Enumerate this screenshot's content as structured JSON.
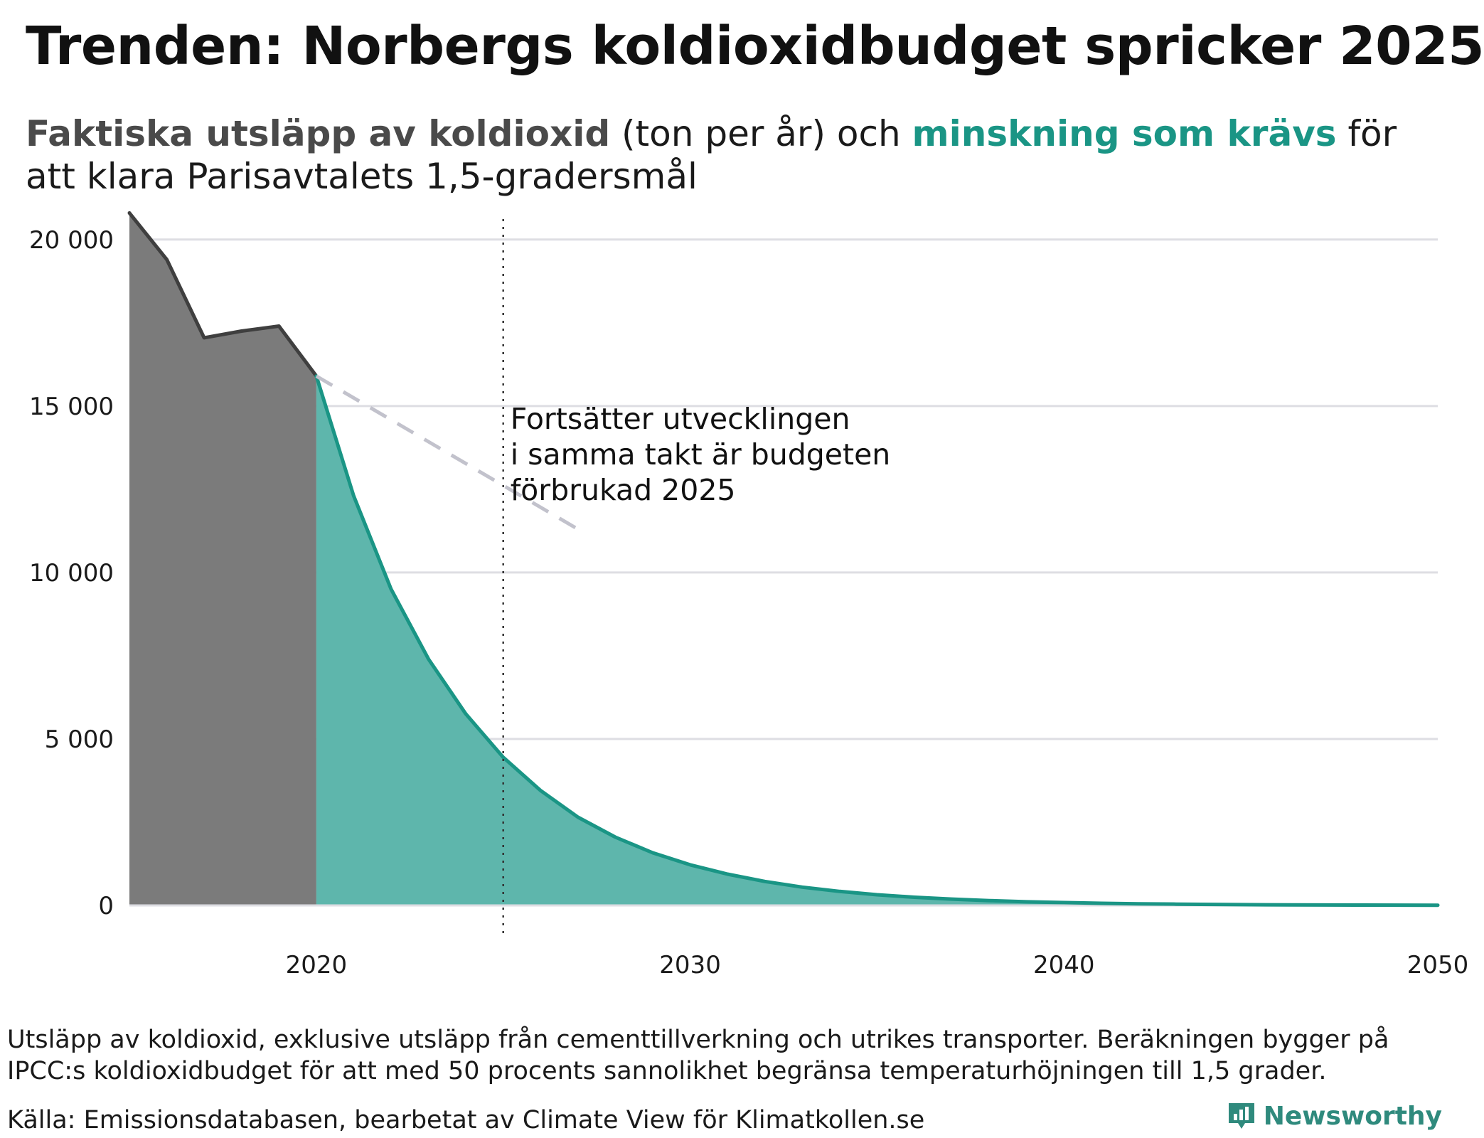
{
  "title": "Trenden: Norbergs koldioxidbudget spricker 2025",
  "subtitle": {
    "part1": "Faktiska utsläpp av koldioxid",
    "part2": " (ton per år) och ",
    "part3": "minskning som krävs",
    "part4": " för att klara Parisavtalets 1,5-gradersmål"
  },
  "footnote": "Utsläpp av koldioxid, exklusive utsläpp från cementtillverkning och utrikes transporter. Beräkningen bygger på IPCC:s koldioxidbudget för att med 50 procents sannolikhet begränsa temperaturhöjningen till 1,5 grader.",
  "source": "Källa: Emissionsdatabasen, bearbetat av Climate View för Klimatkollen.se",
  "brand": "Newsworthy",
  "colors": {
    "actual": "#7b7b7b",
    "actual_line": "#3f3f3f",
    "required": "#5bb5aa",
    "required_line": "#1a9585",
    "trend": "#c2c2cc",
    "grid": "#dedee3"
  },
  "chart_data": {
    "type": "area",
    "xlim": [
      2015,
      2050
    ],
    "ylim": [
      0,
      21000
    ],
    "yticks": [
      0,
      5000,
      10000,
      15000,
      20000
    ],
    "ytick_labels": [
      "0",
      "5 000",
      "10 000",
      "15 000",
      "20 000"
    ],
    "xticks": [
      2020,
      2030,
      2040,
      2050
    ],
    "xtick_labels": [
      "2020",
      "2030",
      "2040",
      "2050"
    ],
    "grid": true,
    "series": [
      {
        "name": "Faktiska utsläpp av koldioxid",
        "x": [
          2015,
          2016,
          2017,
          2018,
          2019,
          2020
        ],
        "y": [
          20800,
          19400,
          17050,
          17250,
          17400,
          15900
        ]
      },
      {
        "name": "minskning som krävs",
        "x": [
          2020,
          2021,
          2022,
          2023,
          2024,
          2025,
          2026,
          2027,
          2028,
          2029,
          2030,
          2031,
          2032,
          2033,
          2034,
          2035,
          2036,
          2037,
          2038,
          2039,
          2040,
          2041,
          2042,
          2043,
          2044,
          2045,
          2046,
          2047,
          2048,
          2049,
          2050
        ],
        "y": [
          15900,
          12300,
          9500,
          7400,
          5750,
          4450,
          3450,
          2650,
          2050,
          1580,
          1220,
          940,
          720,
          550,
          420,
          320,
          245,
          190,
          145,
          110,
          85,
          65,
          50,
          38,
          29,
          22,
          17,
          13,
          10,
          8,
          6
        ]
      }
    ],
    "trend": {
      "x": [
        2020,
        2027
      ],
      "y": [
        15900,
        11300
      ]
    },
    "marker_x": 2025,
    "annotation": [
      "Fortsätter utvecklingen",
      "i samma takt är budgeten",
      "förbrukad 2025"
    ]
  }
}
